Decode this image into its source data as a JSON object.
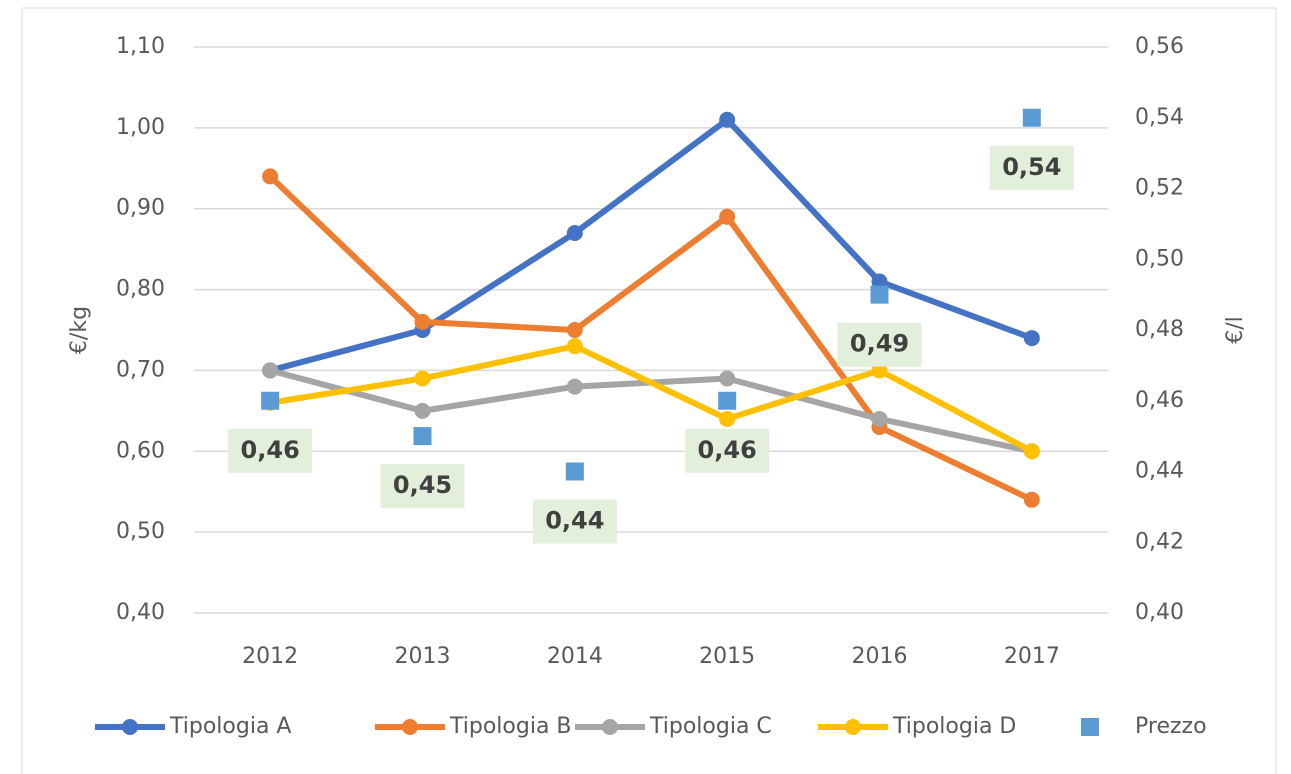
{
  "chart_data": {
    "type": "line",
    "categories": [
      "2012",
      "2013",
      "2014",
      "2015",
      "2016",
      "2017"
    ],
    "y_label": "€/kg",
    "y2_label": "€/l",
    "ylim": [
      0.4,
      1.1
    ],
    "yticks": [
      {
        "value": 0.4,
        "label": "0,40"
      },
      {
        "value": 0.5,
        "label": "0,50"
      },
      {
        "value": 0.6,
        "label": "0,60"
      },
      {
        "value": 0.7,
        "label": "0,70"
      },
      {
        "value": 0.8,
        "label": "0,80"
      },
      {
        "value": 0.9,
        "label": "0,90"
      },
      {
        "value": 1.0,
        "label": "1,00"
      },
      {
        "value": 1.1,
        "label": "1,10"
      }
    ],
    "y2lim": [
      0.4,
      0.56
    ],
    "y2ticks": [
      {
        "value": 0.4,
        "label": "0,40"
      },
      {
        "value": 0.42,
        "label": "0,42"
      },
      {
        "value": 0.44,
        "label": "0,44"
      },
      {
        "value": 0.46,
        "label": "0,46"
      },
      {
        "value": 0.48,
        "label": "0,48"
      },
      {
        "value": 0.5,
        "label": "0,50"
      },
      {
        "value": 0.52,
        "label": "0,52"
      },
      {
        "value": 0.54,
        "label": "0,54"
      },
      {
        "value": 0.56,
        "label": "0,56"
      }
    ],
    "grid": true,
    "legend": "bottom",
    "series": [
      {
        "name": "Tipologia A",
        "color": "#4472c4",
        "values": [
          0.7,
          0.75,
          0.87,
          1.01,
          0.81,
          0.74
        ]
      },
      {
        "name": "Tipologia B",
        "color": "#ed7d31",
        "values": [
          0.94,
          0.76,
          0.75,
          0.89,
          0.63,
          0.54
        ]
      },
      {
        "name": "Tipologia C",
        "color": "#a5a5a5",
        "values": [
          0.7,
          0.65,
          0.68,
          0.69,
          0.64,
          0.6
        ]
      },
      {
        "name": "Tipologia D",
        "color": "#ffc000",
        "values": [
          0.66,
          0.69,
          0.73,
          0.64,
          0.7,
          0.6
        ]
      },
      {
        "name": "Prezzo",
        "color": "#5b9bd5",
        "type": "scatter",
        "axis": "y2",
        "values": [
          0.46,
          0.45,
          0.44,
          0.46,
          0.49,
          0.54
        ],
        "value_labels": [
          "0,46",
          "0,45",
          "0,44",
          "0,46",
          "0,49",
          "0,54"
        ]
      }
    ]
  }
}
